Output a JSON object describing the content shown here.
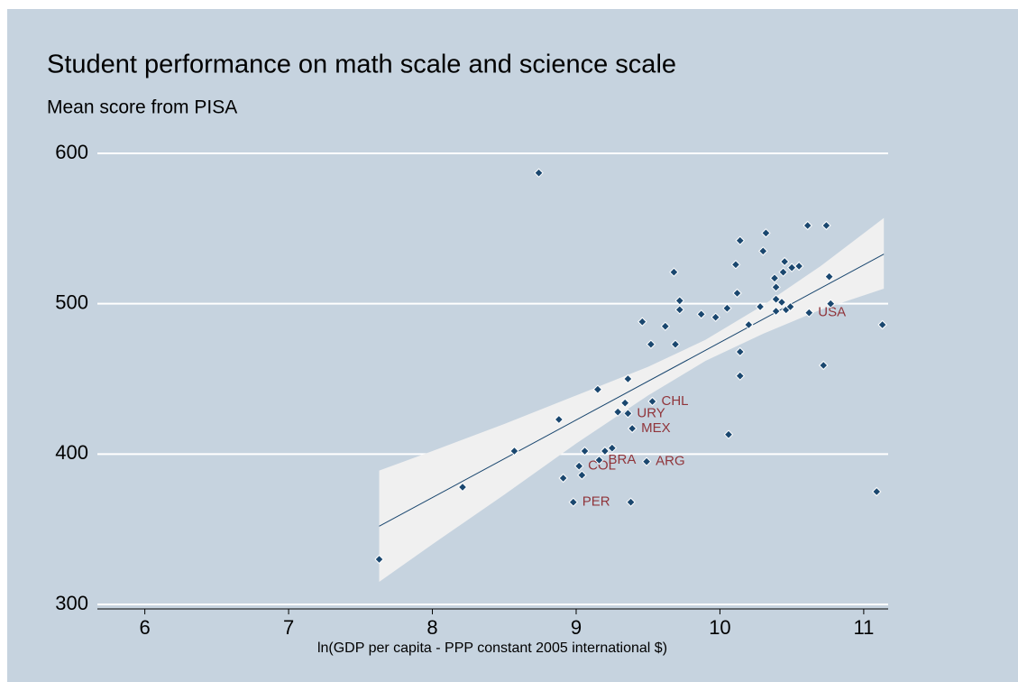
{
  "chart_data": {
    "type": "scatter",
    "title": "Student performance on math scale and science scale",
    "subtitle": "Mean score from PISA",
    "xlabel": "ln(GDP per capita - PPP constant 2005 international $)",
    "xlim": [
      5.67,
      11.17
    ],
    "ylim": [
      300,
      600
    ],
    "xticks": [
      6,
      7,
      8,
      9,
      10,
      11
    ],
    "yticks": [
      300,
      400,
      500,
      600
    ],
    "grid": true,
    "band": {
      "color": "#f0f0f0",
      "x": [
        7.63,
        8.0,
        8.5,
        9.0,
        9.5,
        9.9,
        10.3,
        10.7,
        11.14
      ],
      "upper": [
        389,
        402,
        420,
        439,
        458,
        476,
        499,
        525,
        557
      ],
      "lower": [
        315,
        340,
        373,
        407,
        439,
        462,
        480,
        496,
        510
      ]
    },
    "fit": {
      "color": "#1a476f",
      "x": [
        7.63,
        11.14
      ],
      "y": [
        352,
        533
      ]
    },
    "points": {
      "color": "#1a476f",
      "label_color": "#90353b",
      "x": [
        7.63,
        8.21,
        8.57,
        8.74,
        8.88,
        8.91,
        8.98,
        9.02,
        9.04,
        9.06,
        9.15,
        9.16,
        9.2,
        9.25,
        9.29,
        9.34,
        9.36,
        9.36,
        9.39,
        9.38,
        9.46,
        9.49,
        9.52,
        9.53,
        9.62,
        9.68,
        9.69,
        9.72,
        9.72,
        9.87,
        9.97,
        10.05,
        10.06,
        10.11,
        10.12,
        10.14,
        10.14,
        10.14,
        10.2,
        10.28,
        10.3,
        10.32,
        10.38,
        10.39,
        10.39,
        10.39,
        10.43,
        10.44,
        10.45,
        10.46,
        10.49,
        10.5,
        10.55,
        10.61,
        10.62,
        10.72,
        10.74,
        10.76,
        10.77,
        11.09,
        11.13
      ],
      "y": [
        330,
        378,
        402,
        587,
        423,
        384,
        368,
        392,
        386,
        402,
        443,
        396,
        402,
        404,
        428,
        434,
        427,
        450,
        417,
        368,
        488,
        395,
        473,
        435,
        485,
        521,
        473,
        502,
        496,
        493,
        491,
        497,
        413,
        526,
        507,
        542,
        468,
        452,
        486,
        498,
        535,
        547,
        517,
        511,
        495,
        503,
        501,
        521,
        528,
        496,
        498,
        524,
        525,
        552,
        494,
        459,
        552,
        518,
        500,
        375,
        486
      ],
      "labels": [
        null,
        null,
        null,
        null,
        null,
        null,
        "PER",
        "COL",
        null,
        null,
        null,
        "BRA",
        null,
        null,
        null,
        null,
        "URY",
        null,
        "MEX",
        null,
        null,
        "ARG",
        null,
        "CHL",
        null,
        null,
        null,
        null,
        null,
        null,
        null,
        null,
        null,
        null,
        null,
        null,
        null,
        null,
        null,
        null,
        null,
        null,
        null,
        null,
        null,
        null,
        null,
        null,
        null,
        null,
        null,
        null,
        null,
        null,
        "USA",
        null,
        null,
        null,
        null,
        null,
        null
      ]
    }
  }
}
